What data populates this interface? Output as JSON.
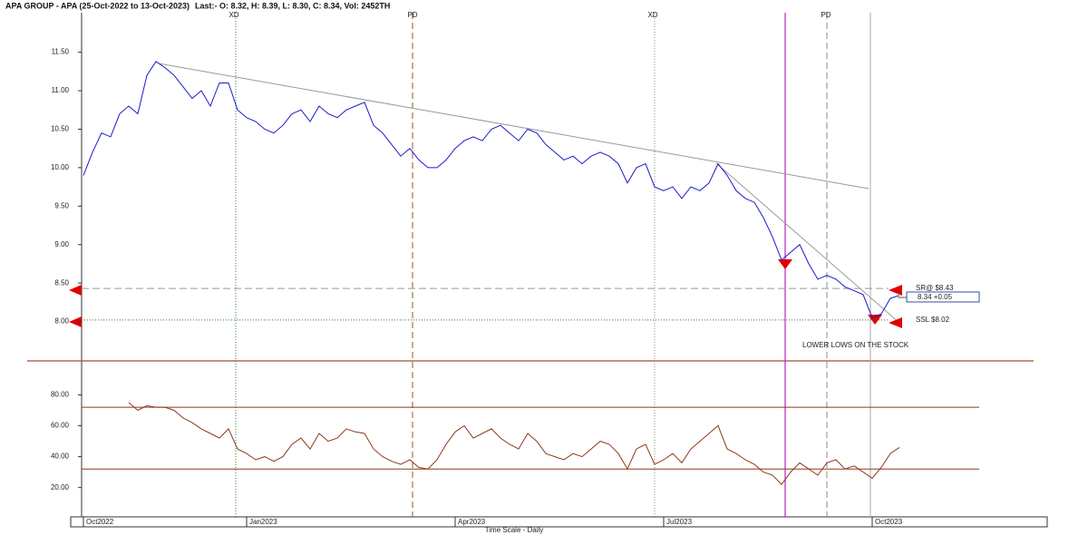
{
  "chart_data": [
    {
      "type": "line",
      "title": "APA GROUP - APA (25-Oct-2022 to 13-Oct-2023)",
      "subtitle": "Last:- O: 8.32, H: 8.39, L: 8.30, C: 8.34, Vol: 2452TH",
      "color": "#1a1acc",
      "categories": [
        "Oct2022",
        null,
        null,
        null,
        null,
        null,
        null,
        null,
        null,
        null,
        null,
        null,
        null,
        null,
        null,
        null,
        null,
        null,
        "Jan2023",
        null,
        null,
        null,
        null,
        null,
        null,
        null,
        null,
        null,
        null,
        null,
        null,
        null,
        null,
        null,
        null,
        null,
        null,
        null,
        null,
        null,
        null,
        "Apr2023",
        null,
        null,
        null,
        null,
        null,
        null,
        null,
        null,
        null,
        null,
        null,
        null,
        null,
        null,
        null,
        null,
        null,
        null,
        null,
        null,
        null,
        null,
        "Jul2023",
        null,
        null,
        null,
        null,
        null,
        null,
        null,
        null,
        null,
        null,
        null,
        null,
        null,
        null,
        null,
        null,
        null,
        null,
        null,
        null,
        null,
        null,
        "Oct2023",
        null,
        null,
        null,
        null,
        null,
        null,
        null,
        null,
        null,
        null,
        null,
        null,
        null,
        null,
        null,
        null,
        null,
        null,
        null
      ],
      "values": [
        9.9,
        10.2,
        10.45,
        10.4,
        10.7,
        10.8,
        10.7,
        11.2,
        11.38,
        11.3,
        11.2,
        11.05,
        10.9,
        11.0,
        10.8,
        11.1,
        11.1,
        10.75,
        10.65,
        10.6,
        10.5,
        10.45,
        10.55,
        10.7,
        10.75,
        10.6,
        10.8,
        10.7,
        10.65,
        10.75,
        10.8,
        10.85,
        10.55,
        10.45,
        10.3,
        10.15,
        10.25,
        10.1,
        10.0,
        10.0,
        10.1,
        10.25,
        10.35,
        10.4,
        10.35,
        10.5,
        10.55,
        10.45,
        10.35,
        10.5,
        10.45,
        10.3,
        10.2,
        10.1,
        10.15,
        10.05,
        10.15,
        10.2,
        10.15,
        10.05,
        9.8,
        10.0,
        10.05,
        9.75,
        9.7,
        9.75,
        9.6,
        9.75,
        9.7,
        9.8,
        10.05,
        9.9,
        9.7,
        9.6,
        9.55,
        9.35,
        9.1,
        8.8,
        8.9,
        9.0,
        8.75,
        8.55,
        8.6,
        8.55,
        8.45,
        8.4,
        8.35,
        8.05,
        8.1,
        8.3,
        8.34,
        null,
        null,
        null,
        null,
        null,
        null,
        null,
        null,
        null,
        null,
        null,
        null,
        null,
        null,
        null,
        null
      ],
      "ylim": [
        7.5,
        12.12
      ],
      "yticks": [
        {
          "value": 8,
          "label": "8.00"
        },
        {
          "value": 8.5,
          "label": "8.50"
        },
        {
          "value": 9,
          "label": "9.00"
        },
        {
          "value": 9.5,
          "label": "9.50"
        },
        {
          "value": 10,
          "label": "10.00"
        },
        {
          "value": 10.5,
          "label": "10.50"
        },
        {
          "value": 11,
          "label": "11.00"
        },
        {
          "value": 11.5,
          "label": "11.50"
        }
      ],
      "levels": [
        {
          "label": "SR@ $8.43",
          "value": 8.43,
          "color": "#999999"
        },
        {
          "label": "SSL $8.02",
          "value": 8.02,
          "color": "#2e7d32"
        }
      ],
      "last_label": "8.34 +0.05",
      "events": [
        "XD",
        "PD",
        "XD",
        "PD"
      ],
      "note": "LOWER LOWS ON THE STOCK"
    },
    {
      "type": "line",
      "color": "#8b3a1a",
      "xlabel": "Time Scale - Daily",
      "values": [
        null,
        null,
        null,
        null,
        null,
        75,
        70,
        73,
        72,
        72,
        70,
        65,
        62,
        58,
        55,
        52,
        58,
        45,
        42,
        38,
        40,
        37,
        40,
        48,
        52,
        45,
        55,
        50,
        52,
        58,
        56,
        55,
        45,
        40,
        37,
        35,
        38,
        33,
        32,
        38,
        48,
        56,
        60,
        52,
        55,
        58,
        52,
        48,
        45,
        55,
        50,
        42,
        40,
        38,
        42,
        40,
        45,
        50,
        48,
        42,
        32,
        45,
        48,
        35,
        38,
        42,
        36,
        45,
        50,
        55,
        60,
        45,
        42,
        38,
        35,
        30,
        28,
        22,
        30,
        36,
        32,
        28,
        36,
        38,
        32,
        34,
        30,
        26,
        33,
        42,
        46,
        null,
        null,
        null,
        null,
        null,
        null,
        null,
        null,
        null,
        null,
        null,
        null,
        null,
        null,
        null,
        null
      ],
      "ylim": [
        1,
        102
      ],
      "yticks": [
        {
          "value": 20,
          "label": "20.00"
        },
        {
          "value": 40,
          "label": "40.00"
        },
        {
          "value": 60,
          "label": "60.00"
        },
        {
          "value": 80,
          "label": "80.00"
        }
      ],
      "hlines": [
        72,
        32
      ]
    }
  ]
}
